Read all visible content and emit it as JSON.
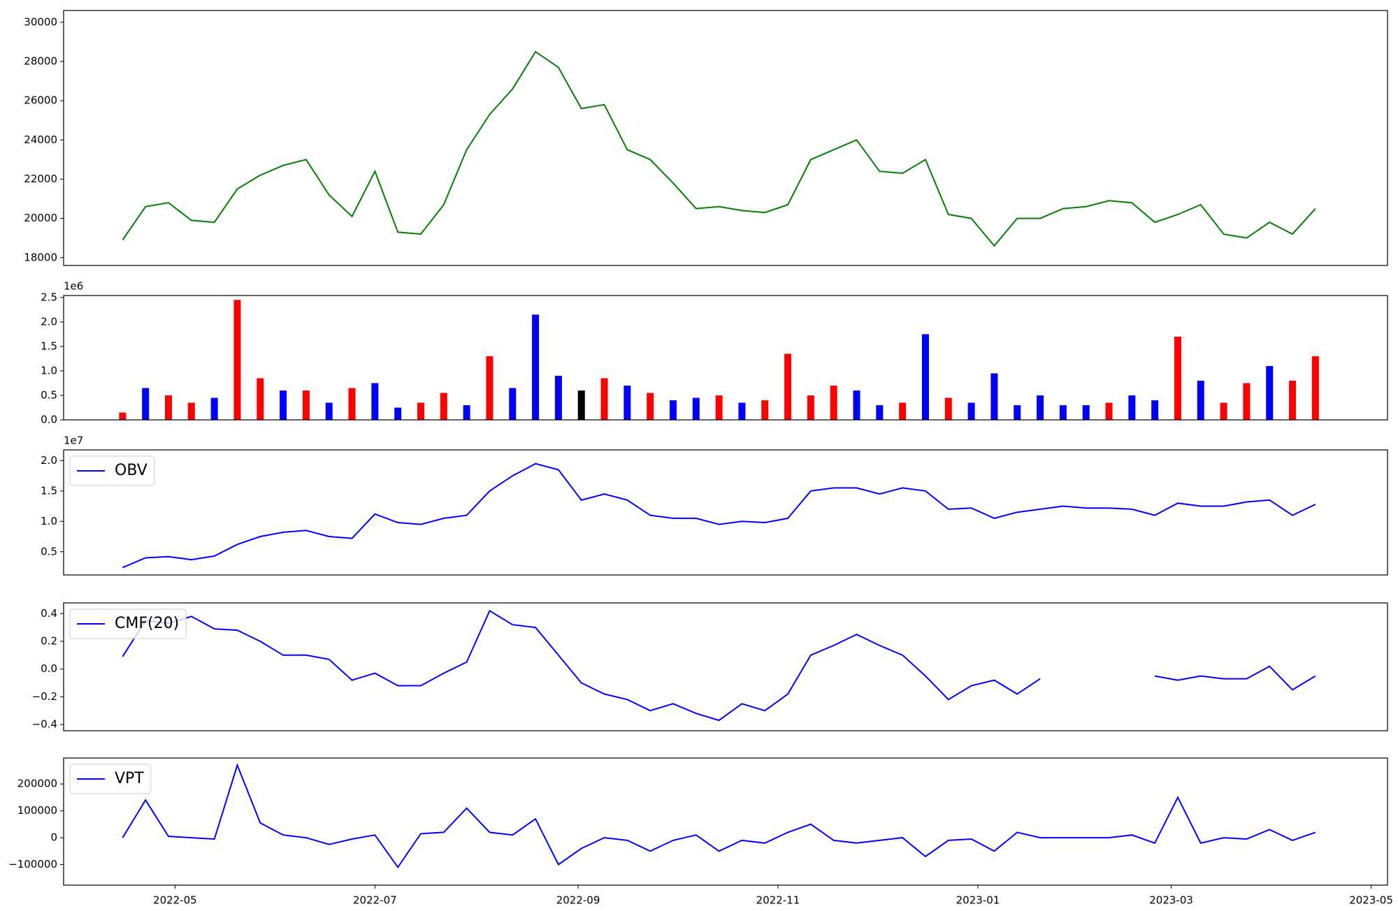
{
  "chart_data": [
    {
      "type": "line",
      "color": "#008000",
      "x": [
        "2022-04-15",
        "2022-04-22",
        "2022-04-29",
        "2022-05-06",
        "2022-05-13",
        "2022-05-20",
        "2022-05-27",
        "2022-06-03",
        "2022-06-10",
        "2022-06-17",
        "2022-06-24",
        "2022-07-01",
        "2022-07-08",
        "2022-07-15",
        "2022-07-22",
        "2022-07-29",
        "2022-08-05",
        "2022-08-12",
        "2022-08-19",
        "2022-08-26",
        "2022-09-02",
        "2022-09-09",
        "2022-09-16",
        "2022-09-23",
        "2022-09-30",
        "2022-10-07",
        "2022-10-14",
        "2022-10-21",
        "2022-10-28",
        "2022-11-04",
        "2022-11-11",
        "2022-11-18",
        "2022-11-25",
        "2022-12-02",
        "2022-12-09",
        "2022-12-16",
        "2022-12-23",
        "2022-12-30",
        "2023-01-06",
        "2023-01-13",
        "2023-01-20",
        "2023-01-27",
        "2023-02-03",
        "2023-02-10",
        "2023-02-17",
        "2023-02-24",
        "2023-03-03",
        "2023-03-10",
        "2023-03-17",
        "2023-03-24",
        "2023-03-31",
        "2023-04-07",
        "2023-04-14"
      ],
      "values": [
        18900,
        20600,
        20800,
        19900,
        19800,
        21500,
        22200,
        22700,
        23000,
        21200,
        20100,
        22400,
        19300,
        19200,
        20700,
        23500,
        25300,
        26600,
        28500,
        27700,
        25600,
        25800,
        23500,
        23000,
        21800,
        20500,
        20600,
        20400,
        20300,
        20700,
        23000,
        23500,
        24000,
        22400,
        22300,
        23000,
        20200,
        20000,
        18600,
        20000,
        20000,
        20500,
        20600,
        20900,
        20800,
        19800,
        20200,
        20700,
        19200,
        19000,
        19800,
        19200,
        20500
      ],
      "xlim": [
        "2022-03-28",
        "2023-05-06"
      ],
      "ylim": [
        17600,
        30600
      ],
      "yticks": [
        18000,
        20000,
        22000,
        24000,
        26000,
        28000,
        30000
      ]
    },
    {
      "type": "bar",
      "offset_label": "1e6",
      "x": [
        "2022-04-15",
        "2022-04-22",
        "2022-04-29",
        "2022-05-06",
        "2022-05-13",
        "2022-05-20",
        "2022-05-27",
        "2022-06-03",
        "2022-06-10",
        "2022-06-17",
        "2022-06-24",
        "2022-07-01",
        "2022-07-08",
        "2022-07-15",
        "2022-07-22",
        "2022-07-29",
        "2022-08-05",
        "2022-08-12",
        "2022-08-19",
        "2022-08-26",
        "2022-09-02",
        "2022-09-09",
        "2022-09-16",
        "2022-09-23",
        "2022-09-30",
        "2022-10-07",
        "2022-10-14",
        "2022-10-21",
        "2022-10-28",
        "2022-11-04",
        "2022-11-11",
        "2022-11-18",
        "2022-11-25",
        "2022-12-02",
        "2022-12-09",
        "2022-12-16",
        "2022-12-23",
        "2022-12-30",
        "2023-01-06",
        "2023-01-13",
        "2023-01-20",
        "2023-01-27",
        "2023-02-03",
        "2023-02-10",
        "2023-02-17",
        "2023-02-24",
        "2023-03-03",
        "2023-03-10",
        "2023-03-17",
        "2023-03-24",
        "2023-03-31",
        "2023-04-07",
        "2023-04-14"
      ],
      "values": [
        150000,
        650000,
        500000,
        350000,
        450000,
        2450000,
        850000,
        600000,
        600000,
        350000,
        650000,
        750000,
        250000,
        350000,
        550000,
        300000,
        1300000,
        650000,
        2150000,
        900000,
        600000,
        850000,
        700000,
        550000,
        400000,
        450000,
        500000,
        350000,
        400000,
        1350000,
        500000,
        700000,
        600000,
        300000,
        350000,
        1750000,
        450000,
        350000,
        950000,
        300000,
        500000,
        300000,
        300000,
        350000,
        500000,
        400000,
        1700000,
        800000,
        350000,
        750000,
        1100000,
        800000,
        1300000
      ],
      "colors": [
        "red",
        "blue",
        "red",
        "red",
        "blue",
        "red",
        "red",
        "blue",
        "red",
        "blue",
        "red",
        "blue",
        "blue",
        "red",
        "red",
        "blue",
        "red",
        "blue",
        "blue",
        "blue",
        "black",
        "red",
        "blue",
        "red",
        "blue",
        "blue",
        "red",
        "blue",
        "red",
        "red",
        "red",
        "red",
        "blue",
        "blue",
        "red",
        "blue",
        "red",
        "blue",
        "blue",
        "blue",
        "blue",
        "blue",
        "blue",
        "red",
        "blue",
        "blue",
        "red",
        "blue",
        "red",
        "red",
        "blue",
        "red",
        "red"
      ],
      "xlim": [
        "2022-03-28",
        "2023-05-06"
      ],
      "ylim": [
        0,
        2540000
      ],
      "yticks": [
        {
          "value": 0,
          "label": "0.0"
        },
        {
          "value": 500000,
          "label": "0.5"
        },
        {
          "value": 1000000,
          "label": "1.0"
        },
        {
          "value": 1500000,
          "label": "1.5"
        },
        {
          "value": 2000000,
          "label": "2.0"
        },
        {
          "value": 2500000,
          "label": "2.5"
        }
      ]
    },
    {
      "type": "line",
      "offset_label": "1e7",
      "legend": "upper left",
      "x": [
        "2022-04-15",
        "2022-04-22",
        "2022-04-29",
        "2022-05-06",
        "2022-05-13",
        "2022-05-20",
        "2022-05-27",
        "2022-06-03",
        "2022-06-10",
        "2022-06-17",
        "2022-06-24",
        "2022-07-01",
        "2022-07-08",
        "2022-07-15",
        "2022-07-22",
        "2022-07-29",
        "2022-08-05",
        "2022-08-12",
        "2022-08-19",
        "2022-08-26",
        "2022-09-02",
        "2022-09-09",
        "2022-09-16",
        "2022-09-23",
        "2022-09-30",
        "2022-10-07",
        "2022-10-14",
        "2022-10-21",
        "2022-10-28",
        "2022-11-04",
        "2022-11-11",
        "2022-11-18",
        "2022-11-25",
        "2022-12-02",
        "2022-12-09",
        "2022-12-16",
        "2022-12-23",
        "2022-12-30",
        "2023-01-06",
        "2023-01-13",
        "2023-01-20",
        "2023-01-27",
        "2023-02-03",
        "2023-02-10",
        "2023-02-17",
        "2023-02-24",
        "2023-03-03",
        "2023-03-10",
        "2023-03-17",
        "2023-03-24",
        "2023-03-31",
        "2023-04-07",
        "2023-04-14"
      ],
      "series": [
        {
          "name": "OBV",
          "color": "blue",
          "values": [
            2400000,
            4000000,
            4200000,
            3700000,
            4300000,
            6200000,
            7500000,
            8200000,
            8500000,
            7500000,
            7200000,
            11200000,
            9800000,
            9500000,
            10500000,
            11000000,
            15000000,
            17500000,
            19500000,
            18500000,
            13500000,
            14500000,
            13500000,
            11000000,
            10500000,
            10500000,
            9500000,
            10000000,
            9800000,
            10500000,
            15000000,
            15500000,
            15500000,
            14500000,
            15500000,
            15000000,
            12000000,
            12200000,
            10500000,
            11500000,
            12000000,
            12500000,
            12200000,
            12200000,
            12000000,
            11000000,
            13000000,
            12500000,
            12500000,
            13200000,
            13500000,
            11000000,
            12800000
          ]
        }
      ],
      "xlim": [
        "2022-03-28",
        "2023-05-06"
      ],
      "ylim": [
        1180000,
        21760000
      ],
      "yticks": [
        {
          "value": 5000000,
          "label": "0.5"
        },
        {
          "value": 10000000,
          "label": "1.0"
        },
        {
          "value": 15000000,
          "label": "1.5"
        },
        {
          "value": 20000000,
          "label": "2.0"
        }
      ]
    },
    {
      "type": "line",
      "legend": "upper left",
      "x": [
        "2022-04-15",
        "2022-04-22",
        "2022-04-29",
        "2022-05-06",
        "2022-05-13",
        "2022-05-20",
        "2022-05-27",
        "2022-06-03",
        "2022-06-10",
        "2022-06-17",
        "2022-06-24",
        "2022-07-01",
        "2022-07-08",
        "2022-07-15",
        "2022-07-22",
        "2022-07-29",
        "2022-08-05",
        "2022-08-12",
        "2022-08-19",
        "2022-08-26",
        "2022-09-02",
        "2022-09-09",
        "2022-09-16",
        "2022-09-23",
        "2022-09-30",
        "2022-10-07",
        "2022-10-14",
        "2022-10-21",
        "2022-10-28",
        "2022-11-04",
        "2022-11-11",
        "2022-11-18",
        "2022-11-25",
        "2022-12-02",
        "2022-12-09",
        "2022-12-16",
        "2022-12-23",
        "2022-12-30",
        "2023-01-06",
        "2023-01-13",
        "2023-01-20",
        "2023-01-27",
        "2023-02-03",
        "2023-02-10",
        "2023-02-17",
        "2023-02-24",
        "2023-03-03",
        "2023-03-10",
        "2023-03-17",
        "2023-03-24",
        "2023-03-31",
        "2023-04-07",
        "2023-04-14"
      ],
      "series": [
        {
          "name": "CMF(20)",
          "color": "blue",
          "values": [
            0.09,
            0.35,
            0.33,
            0.38,
            0.29,
            0.28,
            0.2,
            0.1,
            0.1,
            0.07,
            -0.08,
            -0.03,
            -0.12,
            -0.12,
            -0.03,
            0.05,
            0.42,
            0.32,
            0.3,
            0.1,
            -0.1,
            -0.18,
            -0.22,
            -0.3,
            -0.25,
            -0.32,
            -0.37,
            -0.25,
            -0.3,
            -0.18,
            0.1,
            0.17,
            0.25,
            0.17,
            0.1,
            -0.05,
            -0.22,
            -0.12,
            -0.08,
            -0.18,
            -0.07,
            null,
            null,
            null,
            null,
            -0.05,
            -0.08,
            -0.05,
            -0.07,
            -0.07,
            0.02,
            -0.15,
            -0.05
          ]
        }
      ],
      "xlim": [
        "2022-03-28",
        "2023-05-06"
      ],
      "ylim": [
        -0.445,
        0.477
      ],
      "yticks": [
        {
          "value": -0.4,
          "label": "−0.4"
        },
        {
          "value": -0.2,
          "label": "−0.2"
        },
        {
          "value": 0,
          "label": "0.0"
        },
        0.2,
        0.4
      ]
    },
    {
      "type": "line",
      "legend": "upper left",
      "x": [
        "2022-04-15",
        "2022-04-22",
        "2022-04-29",
        "2022-05-06",
        "2022-05-13",
        "2022-05-20",
        "2022-05-27",
        "2022-06-03",
        "2022-06-10",
        "2022-06-17",
        "2022-06-24",
        "2022-07-01",
        "2022-07-08",
        "2022-07-15",
        "2022-07-22",
        "2022-07-29",
        "2022-08-05",
        "2022-08-12",
        "2022-08-19",
        "2022-08-26",
        "2022-09-02",
        "2022-09-09",
        "2022-09-16",
        "2022-09-23",
        "2022-09-30",
        "2022-10-07",
        "2022-10-14",
        "2022-10-21",
        "2022-10-28",
        "2022-11-04",
        "2022-11-11",
        "2022-11-18",
        "2022-11-25",
        "2022-12-02",
        "2022-12-09",
        "2022-12-16",
        "2022-12-23",
        "2022-12-30",
        "2023-01-06",
        "2023-01-13",
        "2023-01-20",
        "2023-01-27",
        "2023-02-03",
        "2023-02-10",
        "2023-02-17",
        "2023-02-24",
        "2023-03-03",
        "2023-03-10",
        "2023-03-17",
        "2023-03-24",
        "2023-03-31",
        "2023-04-07",
        "2023-04-14"
      ],
      "series": [
        {
          "name": "VPT",
          "color": "blue",
          "values": [
            0,
            140000,
            5000,
            0,
            -5000,
            270000,
            55000,
            10000,
            0,
            -25000,
            -5000,
            10000,
            -110000,
            15000,
            20000,
            110000,
            20000,
            10000,
            70000,
            -100000,
            -40000,
            0,
            -10000,
            -50000,
            -10000,
            10000,
            -50000,
            -10000,
            -20000,
            20000,
            50000,
            -10000,
            -20000,
            -10000,
            0,
            -70000,
            -10000,
            -5000,
            -50000,
            20000,
            0,
            0,
            0,
            0,
            10000,
            -20000,
            150000,
            -20000,
            0,
            -5000,
            30000,
            -10000,
            20000
          ]
        }
      ],
      "xlim": [
        "2022-03-28",
        "2023-05-06"
      ],
      "ylim": [
        -176667,
        296667
      ],
      "yticks": [
        {
          "value": -100000,
          "label": "−100000"
        },
        0,
        100000,
        200000
      ],
      "xticks": [
        {
          "value": "2022-05-01",
          "label": "2022-05"
        },
        {
          "value": "2022-07-01",
          "label": "2022-07"
        },
        {
          "value": "2022-09-01",
          "label": "2022-09"
        },
        {
          "value": "2022-11-01",
          "label": "2022-11"
        },
        {
          "value": "2023-01-01",
          "label": "2023-01"
        },
        {
          "value": "2023-03-01",
          "label": "2023-03"
        },
        {
          "value": "2023-05-01",
          "label": "2023-05"
        }
      ]
    }
  ]
}
